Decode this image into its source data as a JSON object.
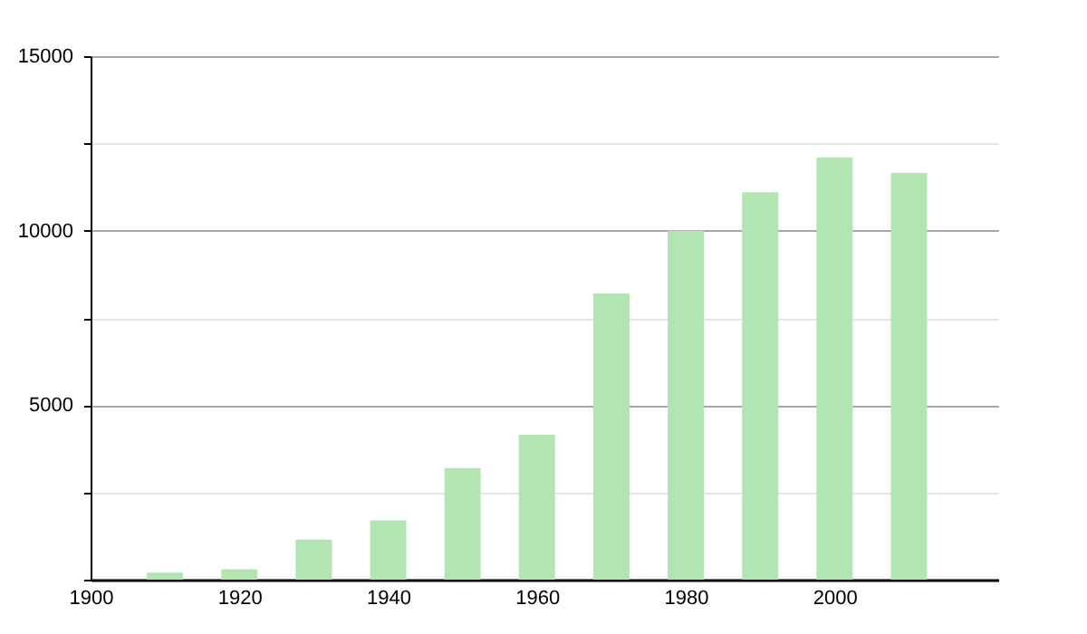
{
  "chart_data": {
    "type": "bar",
    "x": [
      1910,
      1920,
      1930,
      1940,
      1950,
      1960,
      1970,
      1980,
      1990,
      2000,
      2010
    ],
    "values": [
      200,
      300,
      1150,
      1700,
      3200,
      4150,
      8200,
      10000,
      11100,
      12100,
      11650
    ],
    "color": "#b3e5b3",
    "xlim": [
      1900,
      2022
    ],
    "xticks": [
      1900,
      1920,
      1940,
      1960,
      1980,
      2000
    ],
    "ylim": [
      0,
      15000
    ],
    "yticks": [
      {
        "value": 0,
        "label": null
      },
      {
        "value": 2500,
        "label": null
      },
      5000,
      {
        "value": 7500,
        "label": null
      },
      10000,
      {
        "value": 12500,
        "label": null
      },
      15000
    ],
    "grid": true
  }
}
